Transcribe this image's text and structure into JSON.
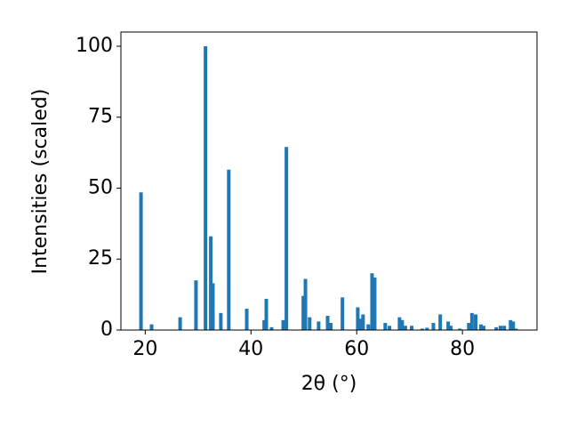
{
  "chart_data": {
    "type": "bar",
    "x_label": "2θ (°)",
    "y_label": "Intensities (scaled)",
    "x": [
      19.2,
      21.2,
      26.6,
      29.6,
      31.4,
      32.4,
      32.8,
      34.3,
      35.8,
      39.2,
      42.5,
      42.9,
      43.9,
      46.1,
      46.7,
      49.9,
      50.3,
      51.1,
      52.8,
      54.5,
      55.1,
      57.3,
      60.2,
      60.7,
      61.2,
      62.2,
      62.9,
      63.4,
      65.4,
      66.2,
      68.1,
      68.6,
      69.2,
      70.4,
      72.4,
      73.3,
      74.5,
      75.8,
      77.3,
      77.8,
      79.5,
      81.2,
      81.8,
      82.5,
      83.5,
      84.0,
      86.4,
      87.2,
      87.9,
      89.1,
      89.6,
      90.1
    ],
    "values": [
      48.5,
      2,
      4.5,
      17.5,
      100,
      33,
      16.5,
      6,
      56.5,
      7.5,
      3.5,
      11,
      1,
      3.5,
      64.5,
      12,
      18,
      4.5,
      3,
      5,
      2.5,
      11.5,
      8,
      4,
      5.5,
      2,
      20,
      18.5,
      2.5,
      1.5,
      4.5,
      3.5,
      1.5,
      1.5,
      0.5,
      0.8,
      2.5,
      5.5,
      3,
      1.5,
      0.5,
      2.5,
      6,
      5.5,
      2,
      1.5,
      1,
      1.5,
      1.5,
      3.5,
      3,
      0.5
    ],
    "color": "#1f77b4",
    "xlim": [
      15.4,
      94.1
    ],
    "xticks": [
      20,
      40,
      60,
      80
    ],
    "ylim": [
      0,
      105
    ],
    "yticks": [
      0,
      25,
      50,
      75,
      100
    ]
  }
}
